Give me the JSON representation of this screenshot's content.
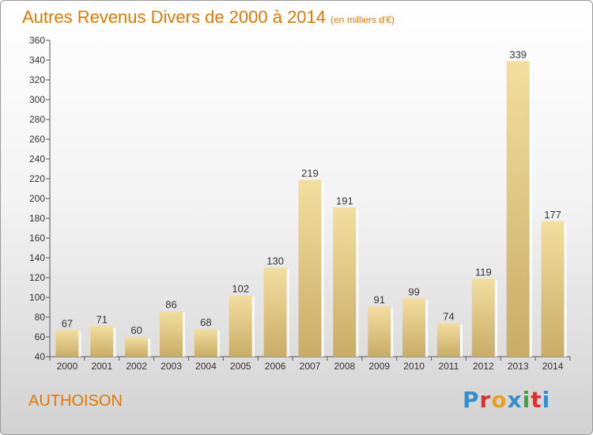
{
  "page": {
    "title": "Autres Revenus Divers de 2000 à 2014",
    "unit_note": "(en milliers d'€)",
    "place": "AUTHOISON",
    "logo": {
      "letters": [
        "P",
        "r",
        "o",
        "x",
        "i",
        "t",
        "i"
      ],
      "colors": [
        "#2f8fd0",
        "#e0302a",
        "#e8a020",
        "#2f8fd0",
        "#3aaa35",
        "#e0302a",
        "#2f8fd0"
      ]
    }
  },
  "chart_data": {
    "type": "bar",
    "title": "Autres Revenus Divers de 2000 à 2014",
    "subtitle": "(en milliers d'€)",
    "xlabel": "",
    "ylabel": "",
    "categories": [
      "2000",
      "2001",
      "2002",
      "2003",
      "2004",
      "2005",
      "2006",
      "2007",
      "2008",
      "2009",
      "2010",
      "2011",
      "2012",
      "2013",
      "2014"
    ],
    "values": [
      67,
      71,
      60,
      86,
      68,
      102,
      130,
      219,
      191,
      91,
      99,
      74,
      119,
      339,
      177
    ],
    "ylim": [
      40,
      360
    ],
    "yticks": [
      40,
      60,
      80,
      100,
      120,
      140,
      160,
      180,
      200,
      220,
      240,
      260,
      280,
      300,
      320,
      340,
      360
    ],
    "grid": false,
    "show_value_labels": true,
    "bar_color_light": "#f3dea0",
    "bar_color_dark": "#c9ac66",
    "axis_color": "#555555"
  }
}
